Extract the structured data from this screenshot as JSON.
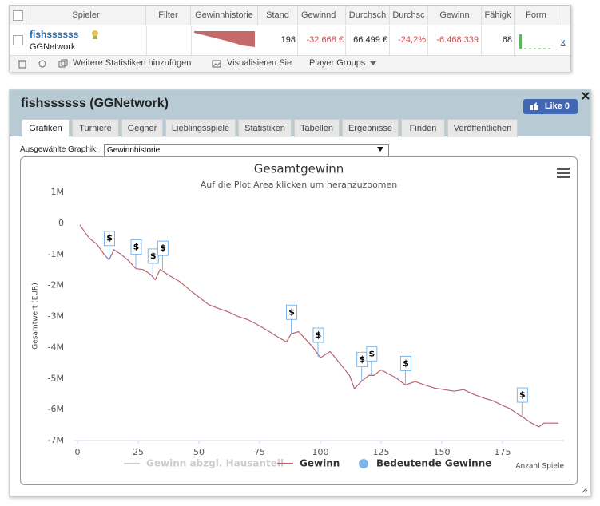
{
  "table": {
    "headers": [
      "Spieler",
      "Filter",
      "Gewinnhistorie",
      "Stand",
      "Gewinnd",
      "Durchsch",
      "Durchsc",
      "Gewinn",
      "Fähigk",
      "Form"
    ],
    "row": {
      "player": "fishssssss",
      "network": "GGNetwork",
      "stand": "198",
      "gewinn_schnitt": "-32.668 €",
      "durchschnitt": "66.499 €",
      "durchschnitt_pct": "-24,2%",
      "gewinn": "-6.468.339",
      "faehigkeit": "68",
      "remove": "x"
    }
  },
  "toolbar": [
    "Weitere Statistiken hinzufügen",
    "Visualisieren Sie",
    "Player Groups"
  ],
  "panel": {
    "title": "fishssssss (GGNetwork)",
    "like_button": "Like 0",
    "tabs": [
      "Grafiken",
      "Turniere",
      "Gegner",
      "Lieblingsspiele",
      "Statistiken",
      "Tabellen",
      "Ergebnisse",
      "Finden",
      "Veröffentlichen"
    ],
    "graph_select_label": "Ausgewählte Graphik:",
    "graph_select_value": "Gewinnhistorie"
  },
  "chart_data": {
    "type": "line",
    "title": "Gesamtgewinn",
    "subtitle": "Auf die Plot Area klicken um heranzuzoomen",
    "y_label": "Gesamtwert (EUR)",
    "x_label": "Anzahl Spiele",
    "xlim": [
      0,
      199
    ],
    "xticks": [
      0,
      25,
      50,
      75,
      100,
      125,
      150,
      175
    ],
    "ylim": [
      -7000000,
      1000000
    ],
    "yticks": [
      {
        "value": -7000000,
        "label": "-7M"
      },
      {
        "value": -6000000,
        "label": "-6M"
      },
      {
        "value": -5000000,
        "label": "-5M"
      },
      {
        "value": -4000000,
        "label": "-4M"
      },
      {
        "value": -3000000,
        "label": "-3M"
      },
      {
        "value": -2000000,
        "label": "-2M"
      },
      {
        "value": -1000000,
        "label": "-1M"
      },
      {
        "value": 0,
        "label": "0"
      },
      {
        "value": 1000000,
        "label": "1M"
      }
    ],
    "grid": false,
    "series": [
      {
        "name": "Gewinn abzgl. Hausanteil",
        "color": "#cccccc",
        "visible": false
      },
      {
        "name": "Gewinn",
        "color": "#b5646f",
        "visible": true,
        "x": [
          1,
          3,
          5,
          8,
          11,
          13,
          15,
          18,
          21,
          24,
          27,
          30,
          32,
          34,
          38,
          42,
          46,
          50,
          54,
          58,
          62,
          66,
          70,
          74,
          78,
          82,
          86,
          88,
          91,
          94,
          97,
          100,
          104,
          108,
          112,
          114,
          117,
          120,
          122,
          125,
          128,
          131,
          135,
          139,
          143,
          147,
          151,
          155,
          159,
          163,
          167,
          171,
          175,
          178,
          181,
          184,
          187,
          190,
          192,
          195,
          198
        ],
        "values": [
          -50000,
          -280000,
          -490000,
          -670000,
          -1000000,
          -1180000,
          -850000,
          -1000000,
          -1200000,
          -1460000,
          -1490000,
          -1640000,
          -1820000,
          -1490000,
          -1690000,
          -1870000,
          -2130000,
          -2380000,
          -2620000,
          -2740000,
          -2850000,
          -3000000,
          -3100000,
          -3260000,
          -3440000,
          -3640000,
          -3820000,
          -3560000,
          -3490000,
          -3740000,
          -4000000,
          -4330000,
          -4130000,
          -4510000,
          -4900000,
          -5330000,
          -5080000,
          -4900000,
          -4900000,
          -4720000,
          -4850000,
          -4970000,
          -5210000,
          -5100000,
          -5210000,
          -5310000,
          -5360000,
          -5410000,
          -5360000,
          -5510000,
          -5620000,
          -5720000,
          -5870000,
          -5970000,
          -6130000,
          -6280000,
          -6440000,
          -6560000,
          -6440000,
          -6440000,
          -6440000
        ]
      },
      {
        "name": "Bedeutende Gewinne",
        "color": "#7cb5ec",
        "visible": true,
        "flag_label": "$",
        "x": [
          13,
          24,
          31,
          35,
          88,
          99,
          117,
          121,
          135,
          183
        ],
        "values": [
          -1180000,
          -1460000,
          -1750000,
          -1500000,
          -3560000,
          -4300000,
          -5080000,
          -4900000,
          -5210000,
          -6230000
        ]
      }
    ]
  }
}
